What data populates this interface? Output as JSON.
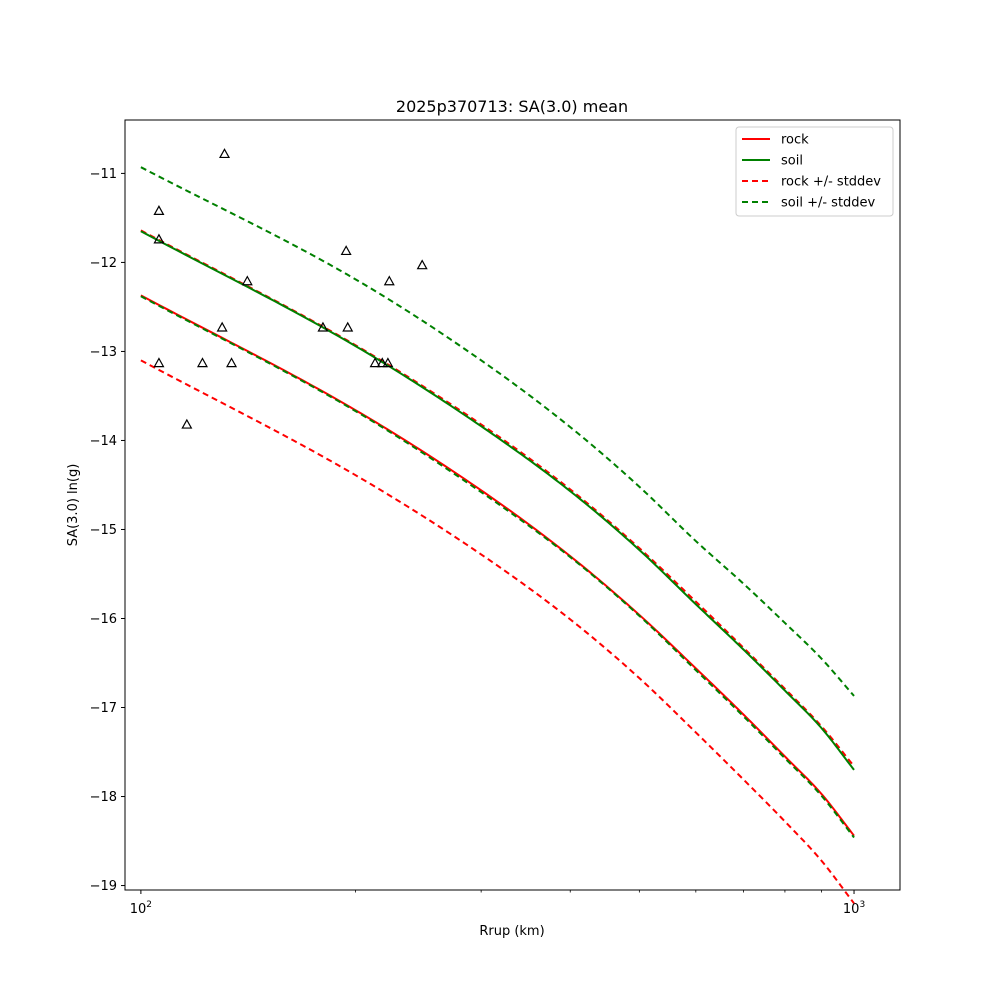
{
  "chart_data": {
    "type": "line",
    "title": "2025p370713: SA(3.0) mean",
    "xlabel": "Rrup (km)",
    "ylabel": "SA(3.0) ln(g)",
    "x_scale": "log",
    "xlim": [
      95,
      1160
    ],
    "ylim": [
      -19.05,
      -10.4
    ],
    "x_ticks": [
      {
        "value": 100,
        "base": "10",
        "exp": "2"
      },
      {
        "value": 1000,
        "base": "10",
        "exp": "3"
      }
    ],
    "y_ticks": [
      {
        "value": -11,
        "label": "−11"
      },
      {
        "value": -12,
        "label": "−12"
      },
      {
        "value": -13,
        "label": "−13"
      },
      {
        "value": -14,
        "label": "−14"
      },
      {
        "value": -15,
        "label": "−15"
      },
      {
        "value": -16,
        "label": "−16"
      },
      {
        "value": -17,
        "label": "−17"
      },
      {
        "value": -18,
        "label": "−18"
      },
      {
        "value": -19,
        "label": "−19"
      }
    ],
    "legend": {
      "position": "top-right",
      "entries": [
        {
          "label": "rock",
          "color": "#ff0000",
          "style": "solid"
        },
        {
          "label": "soil",
          "color": "#008000",
          "style": "solid"
        },
        {
          "label": "rock +/- stddev",
          "color": "#ff0000",
          "style": "dashed"
        },
        {
          "label": "soil +/- stddev",
          "color": "#008000",
          "style": "dashed"
        }
      ]
    },
    "x": [
      100,
      200,
      300,
      400,
      500,
      600,
      700,
      800,
      900,
      1000
    ],
    "series": [
      {
        "key": "rock_plus",
        "color": "#ff0000",
        "style": "dashed",
        "values": [
          -11.64,
          -12.93,
          -13.82,
          -14.55,
          -15.21,
          -15.81,
          -16.33,
          -16.79,
          -17.21,
          -17.66
        ]
      },
      {
        "key": "soil_plus",
        "color": "#008000",
        "style": "dashed",
        "values": [
          -10.93,
          -12.19,
          -13.1,
          -13.85,
          -14.52,
          -15.13,
          -15.61,
          -16.05,
          -16.45,
          -16.87
        ]
      },
      {
        "key": "rock",
        "color": "#ff0000",
        "style": "solid",
        "values": [
          -12.37,
          -13.66,
          -14.56,
          -15.3,
          -15.96,
          -16.56,
          -17.08,
          -17.55,
          -17.97,
          -18.44
        ]
      },
      {
        "key": "soil",
        "color": "#008000",
        "style": "solid",
        "values": [
          -11.65,
          -12.94,
          -13.84,
          -14.57,
          -15.23,
          -15.84,
          -16.35,
          -16.81,
          -17.23,
          -17.7
        ]
      },
      {
        "key": "rock_minus",
        "color": "#ff0000",
        "style": "dashed",
        "values": [
          -13.1,
          -14.39,
          -15.28,
          -16.01,
          -16.67,
          -17.28,
          -17.81,
          -18.28,
          -18.72,
          -19.2
        ]
      },
      {
        "key": "soil_minus",
        "color": "#008000",
        "style": "dashed",
        "values": [
          -12.38,
          -13.67,
          -14.58,
          -15.31,
          -15.97,
          -16.58,
          -17.1,
          -17.57,
          -17.99,
          -18.46
        ]
      }
    ],
    "observations": [
      {
        "x": 131,
        "y": -10.78
      },
      {
        "x": 106,
        "y": -11.42
      },
      {
        "x": 106,
        "y": -11.74
      },
      {
        "x": 141,
        "y": -12.21
      },
      {
        "x": 194,
        "y": -11.87
      },
      {
        "x": 223,
        "y": -12.21
      },
      {
        "x": 248,
        "y": -12.03
      },
      {
        "x": 130,
        "y": -12.73
      },
      {
        "x": 180,
        "y": -12.73
      },
      {
        "x": 195,
        "y": -12.73
      },
      {
        "x": 106,
        "y": -13.13
      },
      {
        "x": 122,
        "y": -13.13
      },
      {
        "x": 134,
        "y": -13.13
      },
      {
        "x": 213,
        "y": -13.13
      },
      {
        "x": 218,
        "y": -13.13
      },
      {
        "x": 222,
        "y": -13.13
      },
      {
        "x": 116,
        "y": -13.82
      }
    ]
  }
}
